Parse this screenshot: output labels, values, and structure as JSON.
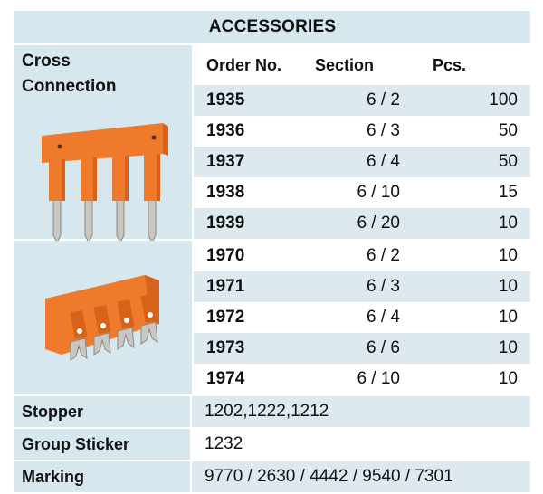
{
  "title": "ACCESSORIES",
  "cross_connection": {
    "label_line1": "Cross",
    "label_line2": "Connection",
    "headers": {
      "order_no": "Order No.",
      "section": "Section",
      "pcs": "Pcs."
    },
    "rows_a": [
      {
        "order": "1935",
        "section": "6 / 2",
        "pcs": "100"
      },
      {
        "order": "1936",
        "section": "6 / 3",
        "pcs": "50"
      },
      {
        "order": "1937",
        "section": "6 / 4",
        "pcs": "50"
      },
      {
        "order": "1938",
        "section": "6 / 10",
        "pcs": "15"
      },
      {
        "order": "1939",
        "section": "6 / 20",
        "pcs": "10"
      }
    ],
    "rows_b": [
      {
        "order": "1970",
        "section": "6 / 2",
        "pcs": "10"
      },
      {
        "order": "1971",
        "section": "6 / 3",
        "pcs": "10"
      },
      {
        "order": "1972",
        "section": "6 / 4",
        "pcs": "10"
      },
      {
        "order": "1973",
        "section": "6 / 6",
        "pcs": "10"
      },
      {
        "order": "1974",
        "section": "6 / 10",
        "pcs": "10"
      }
    ]
  },
  "stopper": {
    "label": "Stopper",
    "value": "1202,1222,1212"
  },
  "group_sticker": {
    "label": "Group Sticker",
    "value": "1232"
  },
  "marking": {
    "label": "Marking",
    "value": "9770 / 2630 / 4442 / 9540 / 7301"
  },
  "colors": {
    "header_bg": "#d6e7ee",
    "alt_row_bg": "#dde9ef",
    "accessory_orange": "#f07a2c"
  }
}
